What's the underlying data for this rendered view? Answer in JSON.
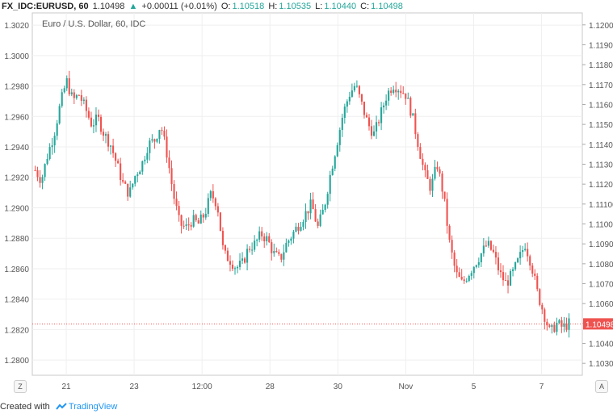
{
  "header": {
    "symbol": "FX_IDC:EURUSD, 60",
    "last": "1.10498",
    "change_arrow": "▲",
    "change": "+0.00011 (+0.01%)",
    "o_label": "O:",
    "o_val": "1.10518",
    "h_label": "H:",
    "h_val": "1.10535",
    "l_label": "L:",
    "l_val": "1.10440",
    "c_label": "C:",
    "c_val": "1.10498"
  },
  "footer": {
    "created_with": "Created with",
    "brand": "TradingView"
  },
  "buttons": {
    "zoom": "Z",
    "auto": "A"
  },
  "price_label": "1.10498",
  "colors": {
    "up": "#26a69a",
    "down": "#ef5350",
    "grid": "#efefef",
    "price_line": "#ef5350"
  },
  "chart_data": {
    "type": "candlestick",
    "title": "Euro / U.S. Dollar, 60, IDC",
    "left_axis": {
      "ticks": [
        "1.3020",
        "1.3000",
        "1.2980",
        "1.2960",
        "1.2940",
        "1.2920",
        "1.2900",
        "1.2880",
        "1.2860",
        "1.2840",
        "1.2820",
        "1.2800"
      ],
      "range": [
        1.279,
        1.3028
      ]
    },
    "right_axis": {
      "ticks": [
        "1.12000",
        "1.11900",
        "1.11800",
        "1.11700",
        "1.11600",
        "1.11500",
        "1.11400",
        "1.11300",
        "1.11200",
        "1.11100",
        "1.11000",
        "1.10900",
        "1.10800",
        "1.10700",
        "1.10600",
        "1.10500",
        "1.10400",
        "1.10300"
      ],
      "range": [
        1.1024,
        1.1206
      ]
    },
    "x_ticks": [
      "21",
      "23",
      "12:00",
      "28",
      "30",
      "Nov",
      "5",
      "7"
    ],
    "grid": true,
    "last_price": 1.10498,
    "series": [
      {
        "name": "EURUSD",
        "close_path": [
          1.1127,
          1.1122,
          1.1135,
          1.1145,
          1.116,
          1.1172,
          1.1162,
          1.1165,
          1.1158,
          1.115,
          1.1153,
          1.1145,
          1.114,
          1.113,
          1.112,
          1.1115,
          1.1125,
          1.113,
          1.114,
          1.1142,
          1.115,
          1.1135,
          1.1115,
          1.11,
          1.1098,
          1.1102,
          1.11,
          1.1105,
          1.1115,
          1.111,
          1.1085,
          1.1082,
          1.1078,
          1.108,
          1.1088,
          1.109,
          1.1095,
          1.1092,
          1.1085,
          1.1082,
          1.109,
          1.1095,
          1.11,
          1.1105,
          1.111,
          1.1098,
          1.1108,
          1.1125,
          1.114,
          1.1155,
          1.1165,
          1.117,
          1.116,
          1.115,
          1.1145,
          1.1155,
          1.1165,
          1.117,
          1.1168,
          1.1165,
          1.1155,
          1.114,
          1.1125,
          1.1118,
          1.113,
          1.1115,
          1.109,
          1.1075,
          1.107,
          1.1075,
          1.108,
          1.1085,
          1.109,
          1.1085,
          1.1075,
          1.107,
          1.1075,
          1.1082,
          1.109,
          1.108,
          1.1065,
          1.1055,
          1.1045,
          1.105,
          1.1048,
          1.105
        ]
      }
    ]
  }
}
